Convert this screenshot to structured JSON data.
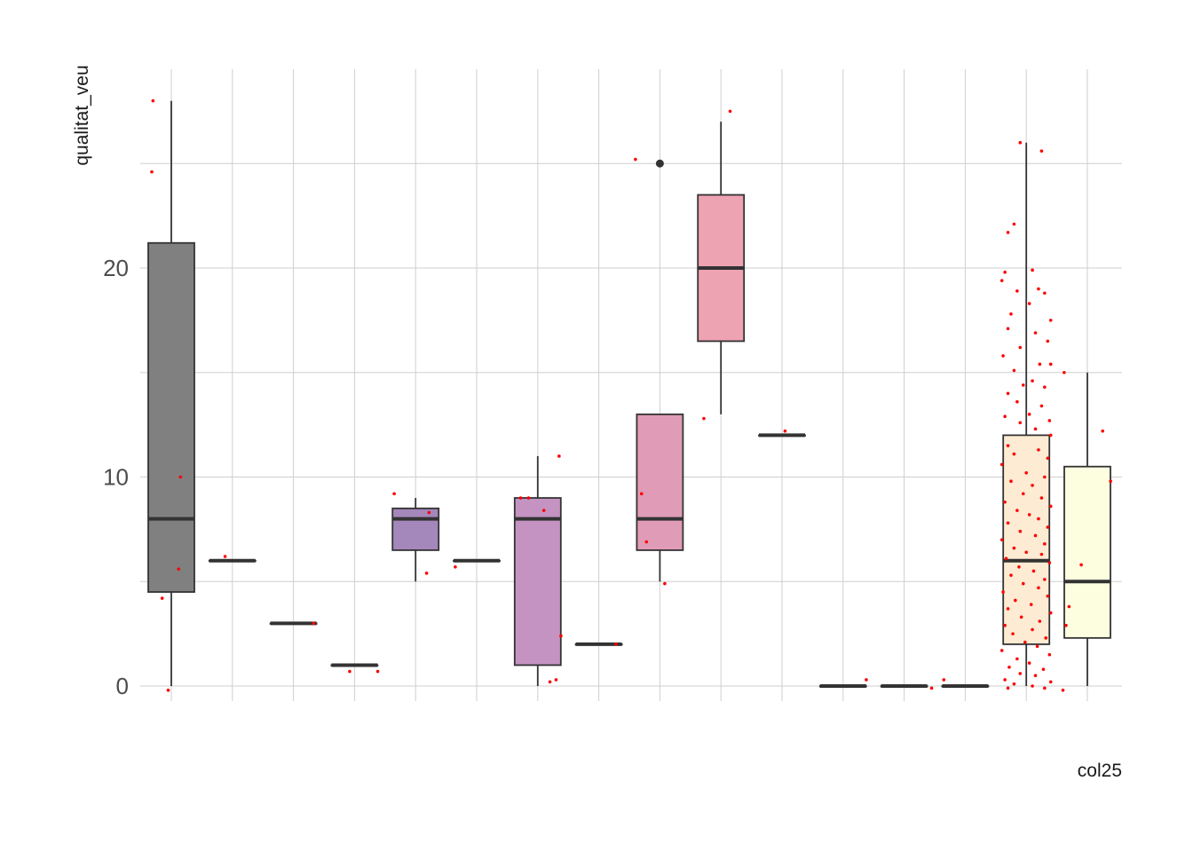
{
  "chart_data": {
    "type": "box",
    "xlabel": "col25",
    "ylabel": "qualitat_veu",
    "ylim": [
      -1.2,
      28.8
    ],
    "yticks": [
      0,
      10,
      20
    ],
    "grid": true,
    "legend": "none",
    "category_labels_overlapping": true,
    "categories": [
      "",
      "",
      "",
      "",
      "",
      "",
      "",
      "",
      "",
      "",
      "",
      "",
      "",
      "",
      "",
      ""
    ],
    "boxes": [
      {
        "q1": 4.5,
        "median": 8,
        "q3": 21.2,
        "whisker_low": 0,
        "whisker_high": 28,
        "fill": "#808080",
        "outliers": []
      },
      {
        "q1": 6,
        "median": 6,
        "q3": 6,
        "whisker_low": 6,
        "whisker_high": 6,
        "fill": "#8f84a8",
        "outliers": []
      },
      {
        "q1": 3,
        "median": 3,
        "q3": 3,
        "whisker_low": 3,
        "whisker_high": 3,
        "fill": "#9580ad",
        "outliers": []
      },
      {
        "q1": 1,
        "median": 1,
        "q3": 1,
        "whisker_low": 1,
        "whisker_high": 1,
        "fill": "#9d84b3",
        "outliers": []
      },
      {
        "q1": 6.5,
        "median": 8,
        "q3": 8.5,
        "whisker_low": 5,
        "whisker_high": 9,
        "fill": "#a487bb",
        "outliers": []
      },
      {
        "q1": 6,
        "median": 6,
        "q3": 6,
        "whisker_low": 6,
        "whisker_high": 6,
        "fill": "#b48bbf",
        "outliers": []
      },
      {
        "q1": 1,
        "median": 8,
        "q3": 9,
        "whisker_low": 0,
        "whisker_high": 11,
        "fill": "#c493c2",
        "outliers": []
      },
      {
        "q1": 2,
        "median": 2,
        "q3": 2,
        "whisker_low": 2,
        "whisker_high": 2,
        "fill": "#d398bd",
        "outliers": []
      },
      {
        "q1": 6.5,
        "median": 8,
        "q3": 13,
        "whisker_low": 5,
        "whisker_high": 13,
        "fill": "#e09bb6",
        "outliers": [
          25
        ]
      },
      {
        "q1": 16.5,
        "median": 20,
        "q3": 23.5,
        "whisker_low": 13,
        "whisker_high": 27,
        "fill": "#eea3b2",
        "outliers": []
      },
      {
        "q1": 12,
        "median": 12,
        "q3": 12,
        "whisker_low": 12,
        "whisker_high": 12,
        "fill": "#f2abb0",
        "outliers": []
      },
      {
        "q1": 0,
        "median": 0,
        "q3": 0,
        "whisker_low": 0,
        "whisker_high": 0,
        "fill": "#f6bcb4",
        "outliers": []
      },
      {
        "q1": 0,
        "median": 0,
        "q3": 0,
        "whisker_low": 0,
        "whisker_high": 0,
        "fill": "#f8cdbc",
        "outliers": []
      },
      {
        "q1": 0,
        "median": 0,
        "q3": 0,
        "whisker_low": 0,
        "whisker_high": 0,
        "fill": "#fbdcc6",
        "outliers": []
      },
      {
        "q1": 2,
        "median": 6,
        "q3": 12,
        "whisker_low": 0,
        "whisker_high": 26,
        "fill": "#fdebd3",
        "outliers": []
      },
      {
        "q1": 2.3,
        "median": 5,
        "q3": 10.5,
        "whisker_low": 0,
        "whisker_high": 15,
        "fill": "#fdfde0",
        "outliers": []
      }
    ],
    "jitter_points": [
      [
        {
          "dx": -0.3,
          "y": 28
        },
        {
          "dx": -0.32,
          "y": 24.6
        },
        {
          "dx": 0.15,
          "y": 10
        },
        {
          "dx": 0.12,
          "y": 5.6
        },
        {
          "dx": -0.15,
          "y": 4.2
        },
        {
          "dx": -0.05,
          "y": -0.2
        }
      ],
      [
        {
          "dx": -0.12,
          "y": 6.2
        }
      ],
      [
        {
          "dx": 0.33,
          "y": 3
        }
      ],
      [
        {
          "dx": -0.08,
          "y": 0.7
        },
        {
          "dx": 0.38,
          "y": 0.7
        }
      ],
      [
        {
          "dx": -0.35,
          "y": 9.2
        },
        {
          "dx": 0.22,
          "y": 8.3
        },
        {
          "dx": 0.18,
          "y": 5.4
        }
      ],
      [
        {
          "dx": -0.35,
          "y": 5.7
        }
      ],
      [
        {
          "dx": -0.28,
          "y": 9
        },
        {
          "dx": -0.15,
          "y": 9
        },
        {
          "dx": 0.1,
          "y": 8.4
        },
        {
          "dx": 0.35,
          "y": 11
        },
        {
          "dx": 0.38,
          "y": 2.4
        },
        {
          "dx": 0.2,
          "y": 0.2
        },
        {
          "dx": 0.3,
          "y": 0.3
        }
      ],
      [
        {
          "dx": 0.28,
          "y": 2
        }
      ],
      [
        {
          "dx": -0.4,
          "y": 25.2
        },
        {
          "dx": -0.3,
          "y": 9.2
        },
        {
          "dx": -0.22,
          "y": 6.9
        },
        {
          "dx": 0.08,
          "y": 4.9
        }
      ],
      [
        {
          "dx": -0.28,
          "y": 12.8
        },
        {
          "dx": 0.15,
          "y": 27.5
        }
      ],
      [
        {
          "dx": 0.05,
          "y": 12.2
        }
      ],
      [
        {
          "dx": 0.38,
          "y": 0.3
        }
      ],
      [
        {
          "dx": 0.45,
          "y": -0.1
        }
      ],
      [
        {
          "dx": -0.35,
          "y": 0.3
        }
      ],
      [
        {
          "dx": -0.1,
          "y": 26
        },
        {
          "dx": 0.25,
          "y": 25.6
        },
        {
          "dx": -0.2,
          "y": 22.1
        },
        {
          "dx": -0.3,
          "y": 21.7
        },
        {
          "dx": -0.35,
          "y": 19.8
        },
        {
          "dx": 0.1,
          "y": 19.9
        },
        {
          "dx": -0.4,
          "y": 19.4
        },
        {
          "dx": 0.2,
          "y": 19.0
        },
        {
          "dx": -0.15,
          "y": 18.9
        },
        {
          "dx": 0.3,
          "y": 18.8
        },
        {
          "dx": 0.05,
          "y": 18.3
        },
        {
          "dx": -0.25,
          "y": 17.8
        },
        {
          "dx": 0.4,
          "y": 17.5
        },
        {
          "dx": -0.3,
          "y": 17.1
        },
        {
          "dx": 0.15,
          "y": 16.9
        },
        {
          "dx": -0.1,
          "y": 16.2
        },
        {
          "dx": 0.35,
          "y": 16.5
        },
        {
          "dx": -0.38,
          "y": 15.8
        },
        {
          "dx": 0.22,
          "y": 15.4
        },
        {
          "dx": 0.4,
          "y": 15.4
        },
        {
          "dx": -0.2,
          "y": 15.1
        },
        {
          "dx": 0.1,
          "y": 14.6
        },
        {
          "dx": -0.05,
          "y": 14.4
        },
        {
          "dx": 0.3,
          "y": 14.3
        },
        {
          "dx": -0.3,
          "y": 14.0
        },
        {
          "dx": -0.15,
          "y": 13.6
        },
        {
          "dx": 0.25,
          "y": 13.4
        },
        {
          "dx": 0.05,
          "y": 13.0
        },
        {
          "dx": -0.35,
          "y": 12.9
        },
        {
          "dx": 0.38,
          "y": 12.7
        },
        {
          "dx": -0.1,
          "y": 12.6
        },
        {
          "dx": 0.15,
          "y": 12.3
        },
        {
          "dx": 0.4,
          "y": 12.0
        },
        {
          "dx": -0.3,
          "y": 11.5
        },
        {
          "dx": 0.2,
          "y": 11.3
        },
        {
          "dx": -0.2,
          "y": 11.1
        },
        {
          "dx": 0.35,
          "y": 10.9
        },
        {
          "dx": -0.4,
          "y": 10.6
        },
        {
          "dx": 0.0,
          "y": 10.2
        },
        {
          "dx": 0.3,
          "y": 10.0
        },
        {
          "dx": -0.25,
          "y": 9.8
        },
        {
          "dx": 0.1,
          "y": 9.6
        },
        {
          "dx": -0.05,
          "y": 9.2
        },
        {
          "dx": 0.25,
          "y": 9.0
        },
        {
          "dx": -0.35,
          "y": 8.8
        },
        {
          "dx": 0.4,
          "y": 8.6
        },
        {
          "dx": -0.15,
          "y": 8.4
        },
        {
          "dx": 0.05,
          "y": 8.2
        },
        {
          "dx": 0.2,
          "y": 8.0
        },
        {
          "dx": -0.3,
          "y": 7.8
        },
        {
          "dx": 0.35,
          "y": 7.6
        },
        {
          "dx": -0.1,
          "y": 7.4
        },
        {
          "dx": 0.15,
          "y": 7.2
        },
        {
          "dx": -0.4,
          "y": 7.0
        },
        {
          "dx": 0.3,
          "y": 6.8
        },
        {
          "dx": -0.2,
          "y": 6.6
        },
        {
          "dx": 0.0,
          "y": 6.4
        },
        {
          "dx": 0.25,
          "y": 6.3
        },
        {
          "dx": -0.33,
          "y": 6.1
        },
        {
          "dx": 0.38,
          "y": 5.9
        },
        {
          "dx": -0.12,
          "y": 5.7
        },
        {
          "dx": 0.12,
          "y": 5.5
        },
        {
          "dx": -0.25,
          "y": 5.3
        },
        {
          "dx": 0.3,
          "y": 5.1
        },
        {
          "dx": -0.05,
          "y": 4.9
        },
        {
          "dx": 0.2,
          "y": 4.7
        },
        {
          "dx": -0.38,
          "y": 4.5
        },
        {
          "dx": 0.35,
          "y": 4.3
        },
        {
          "dx": -0.18,
          "y": 4.1
        },
        {
          "dx": 0.08,
          "y": 3.9
        },
        {
          "dx": -0.3,
          "y": 3.7
        },
        {
          "dx": 0.4,
          "y": 3.5
        },
        {
          "dx": -0.08,
          "y": 3.3
        },
        {
          "dx": 0.22,
          "y": 3.1
        },
        {
          "dx": -0.35,
          "y": 2.9
        },
        {
          "dx": 0.1,
          "y": 2.7
        },
        {
          "dx": -0.22,
          "y": 2.5
        },
        {
          "dx": 0.32,
          "y": 2.3
        },
        {
          "dx": -0.02,
          "y": 2.1
        },
        {
          "dx": 0.18,
          "y": 1.9
        },
        {
          "dx": -0.4,
          "y": 1.7
        },
        {
          "dx": 0.38,
          "y": 1.5
        },
        {
          "dx": -0.15,
          "y": 1.3
        },
        {
          "dx": 0.05,
          "y": 1.1
        },
        {
          "dx": -0.28,
          "y": 0.9
        },
        {
          "dx": 0.28,
          "y": 0.8
        },
        {
          "dx": -0.1,
          "y": 0.6
        },
        {
          "dx": 0.15,
          "y": 0.5
        },
        {
          "dx": -0.35,
          "y": 0.3
        },
        {
          "dx": 0.4,
          "y": 0.2
        },
        {
          "dx": -0.2,
          "y": 0.1
        },
        {
          "dx": 0.1,
          "y": 0.0
        },
        {
          "dx": -0.3,
          "y": -0.1
        },
        {
          "dx": 0.3,
          "y": -0.1
        }
      ],
      [
        {
          "dx": -0.38,
          "y": 15
        },
        {
          "dx": 0.25,
          "y": 12.2
        },
        {
          "dx": 0.38,
          "y": 9.8
        },
        {
          "dx": -0.1,
          "y": 5.8
        },
        {
          "dx": -0.3,
          "y": 3.8
        },
        {
          "dx": -0.35,
          "y": 2.9
        },
        {
          "dx": -0.4,
          "y": -0.2
        }
      ]
    ]
  }
}
